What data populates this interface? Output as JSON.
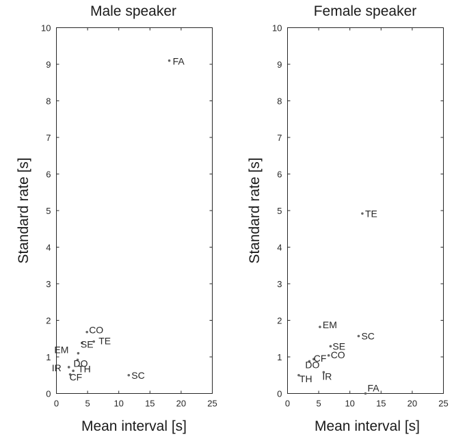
{
  "chart_data": [
    {
      "type": "scatter",
      "title": "Male speaker",
      "xlabel": "Mean interval [s]",
      "ylabel": "Standard rate [s]",
      "xlim": [
        0,
        25
      ],
      "ylim": [
        0,
        10
      ],
      "xticks": [
        0,
        5,
        10,
        15,
        20,
        25
      ],
      "yticks": [
        0,
        1,
        2,
        3,
        4,
        5,
        6,
        7,
        8,
        9,
        10
      ],
      "grid": false,
      "colors": {
        "points": "#666666",
        "axes": "#262626"
      },
      "points": [
        {
          "label": "FA",
          "x": 18.1,
          "y": 9.1
        },
        {
          "label": "CO",
          "x": 4.9,
          "y": 1.68
        },
        {
          "label": "TE",
          "x": 6.0,
          "y": 1.42
        },
        {
          "label": "SE",
          "x": 4.1,
          "y": 1.38
        },
        {
          "label": "EM",
          "x": 3.5,
          "y": 1.1
        },
        {
          "label": "DO",
          "x": 3.4,
          "y": 0.92
        },
        {
          "label": "IR",
          "x": 2.0,
          "y": 0.72
        },
        {
          "label": "TH",
          "x": 2.7,
          "y": 0.62
        },
        {
          "label": "CF",
          "x": 2.2,
          "y": 0.52
        },
        {
          "label": "SC",
          "x": 11.6,
          "y": 0.5
        }
      ]
    },
    {
      "type": "scatter",
      "title": "Female speaker",
      "xlabel": "Mean interval [s]",
      "ylabel": "Standard rate [s]",
      "xlim": [
        0,
        25
      ],
      "ylim": [
        0,
        10
      ],
      "xticks": [
        0,
        5,
        10,
        15,
        20,
        25
      ],
      "yticks": [
        0,
        1,
        2,
        3,
        4,
        5,
        6,
        7,
        8,
        9,
        10
      ],
      "grid": false,
      "colors": {
        "points": "#666666",
        "axes": "#262626"
      },
      "points": [
        {
          "label": "TE",
          "x": 12.0,
          "y": 4.92
        },
        {
          "label": "EM",
          "x": 5.2,
          "y": 1.82
        },
        {
          "label": "SC",
          "x": 11.4,
          "y": 1.57
        },
        {
          "label": "SE",
          "x": 6.9,
          "y": 1.29
        },
        {
          "label": "CO",
          "x": 6.6,
          "y": 1.04
        },
        {
          "label": "CF",
          "x": 4.2,
          "y": 0.94
        },
        {
          "label": "DO",
          "x": 3.5,
          "y": 0.88
        },
        {
          "label": "IR",
          "x": 5.8,
          "y": 0.58
        },
        {
          "label": "TH",
          "x": 1.8,
          "y": 0.5
        },
        {
          "label": "FA",
          "x": 12.5,
          "y": 0.0
        }
      ]
    }
  ]
}
